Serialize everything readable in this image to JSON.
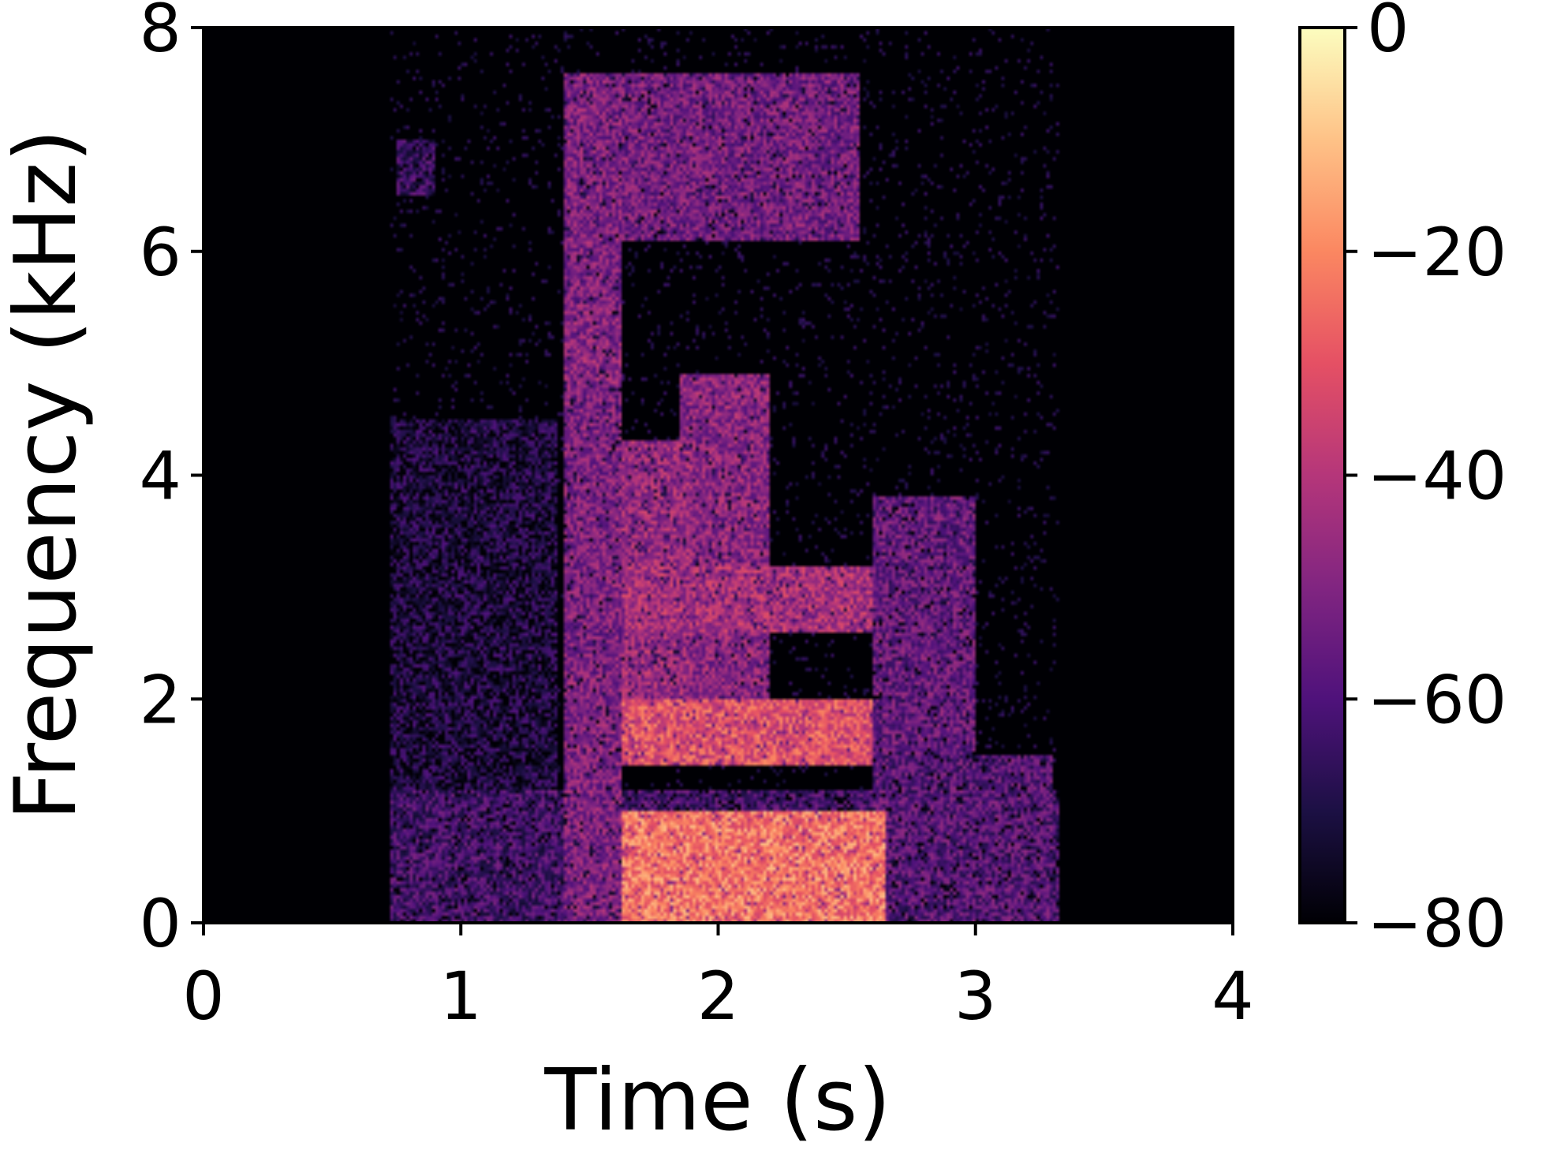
{
  "chart_data": {
    "type": "heatmap",
    "title": "",
    "xlabel": "Time (s)",
    "ylabel": "Frequency (kHz)",
    "xlim": [
      0,
      4
    ],
    "ylim": [
      0,
      8
    ],
    "x_ticks": [
      "0",
      "1",
      "2",
      "3",
      "4"
    ],
    "y_ticks": [
      "0",
      "2",
      "4",
      "6",
      "8"
    ],
    "colormap": "magma",
    "colorbar": {
      "range": [
        -80,
        0
      ],
      "ticks": [
        "0",
        "−20",
        "−40",
        "−60",
        "−80"
      ],
      "tick_values": [
        0,
        -20,
        -40,
        -60,
        -80
      ]
    },
    "energy_regions": [
      {
        "t": [
          0.72,
          3.32
        ],
        "f": [
          0.0,
          1.2
        ],
        "level_db": -62
      },
      {
        "t": [
          0.72,
          1.38
        ],
        "f": [
          0.0,
          4.5
        ],
        "level_db": -70
      },
      {
        "t": [
          0.75,
          0.9
        ],
        "f": [
          6.5,
          7.0
        ],
        "level_db": -64
      },
      {
        "t": [
          1.4,
          1.62
        ],
        "f": [
          0.0,
          7.6
        ],
        "level_db": -50
      },
      {
        "t": [
          1.4,
          2.55
        ],
        "f": [
          6.1,
          7.6
        ],
        "level_db": -52
      },
      {
        "t": [
          1.62,
          2.65
        ],
        "f": [
          0.0,
          1.0
        ],
        "level_db": -22
      },
      {
        "t": [
          1.62,
          2.6
        ],
        "f": [
          1.4,
          2.0
        ],
        "level_db": -30
      },
      {
        "t": [
          1.62,
          1.9
        ],
        "f": [
          2.0,
          4.3
        ],
        "level_db": -45
      },
      {
        "t": [
          1.85,
          2.2
        ],
        "f": [
          2.0,
          4.9
        ],
        "level_db": -48
      },
      {
        "t": [
          1.62,
          2.6
        ],
        "f": [
          2.6,
          3.2
        ],
        "level_db": -42
      },
      {
        "t": [
          1.4,
          1.62
        ],
        "f": [
          4.8,
          5.4
        ],
        "level_db": -48
      },
      {
        "t": [
          2.6,
          3.0
        ],
        "f": [
          1.5,
          3.8
        ],
        "level_db": -55
      },
      {
        "t": [
          2.6,
          3.3
        ],
        "f": [
          0.0,
          1.5
        ],
        "level_db": -58
      }
    ]
  }
}
